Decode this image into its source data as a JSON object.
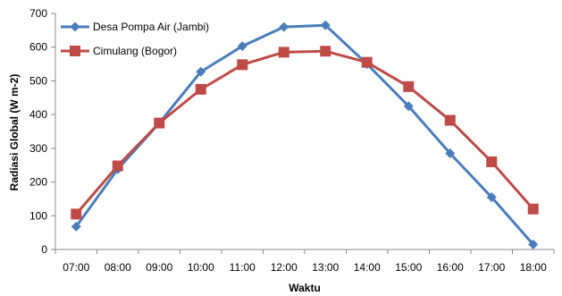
{
  "chart_data": {
    "type": "line",
    "categories": [
      "07:00",
      "08:00",
      "09:00",
      "10:00",
      "11:00",
      "12:00",
      "13:00",
      "14:00",
      "15:00",
      "16:00",
      "17:00",
      "18:00"
    ],
    "series": [
      {
        "name": "Desa Pompa Air (Jambi)",
        "values": [
          68,
          238,
          375,
          527,
          603,
          660,
          665,
          550,
          425,
          285,
          155,
          15
        ],
        "color": "#4a7ebb",
        "marker": "diamond"
      },
      {
        "name": "Cimulang (Bogor)",
        "values": [
          105,
          248,
          375,
          475,
          548,
          585,
          588,
          555,
          483,
          383,
          260,
          120
        ],
        "color": "#be4b48",
        "marker": "square"
      }
    ],
    "title": "",
    "xlabel": "Waktu",
    "ylabel": "Radiasi Global (W m-2)",
    "ylim": [
      0,
      700
    ],
    "yticks": [
      0,
      100,
      200,
      300,
      400,
      500,
      600,
      700
    ],
    "grid": false,
    "legend_position": "top-left"
  }
}
